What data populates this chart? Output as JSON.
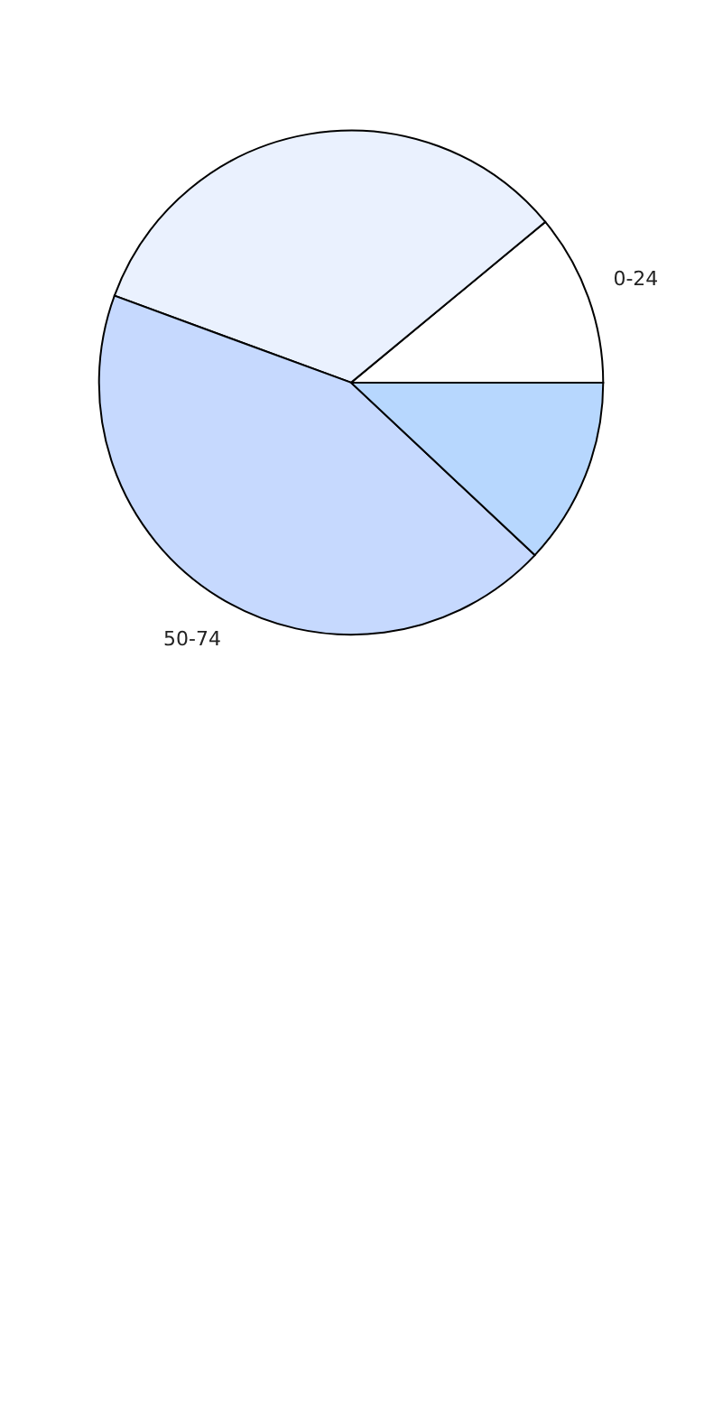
{
  "chart_data": {
    "type": "pie",
    "categories": [
      "0-24",
      null,
      "50-74",
      null
    ],
    "values": [
      11,
      33.4,
      43.6,
      12
    ],
    "colors": [
      "#ffffff",
      "#eaf1fe",
      "#c6d9fe",
      "#b7d7fe"
    ],
    "legend": false
  }
}
